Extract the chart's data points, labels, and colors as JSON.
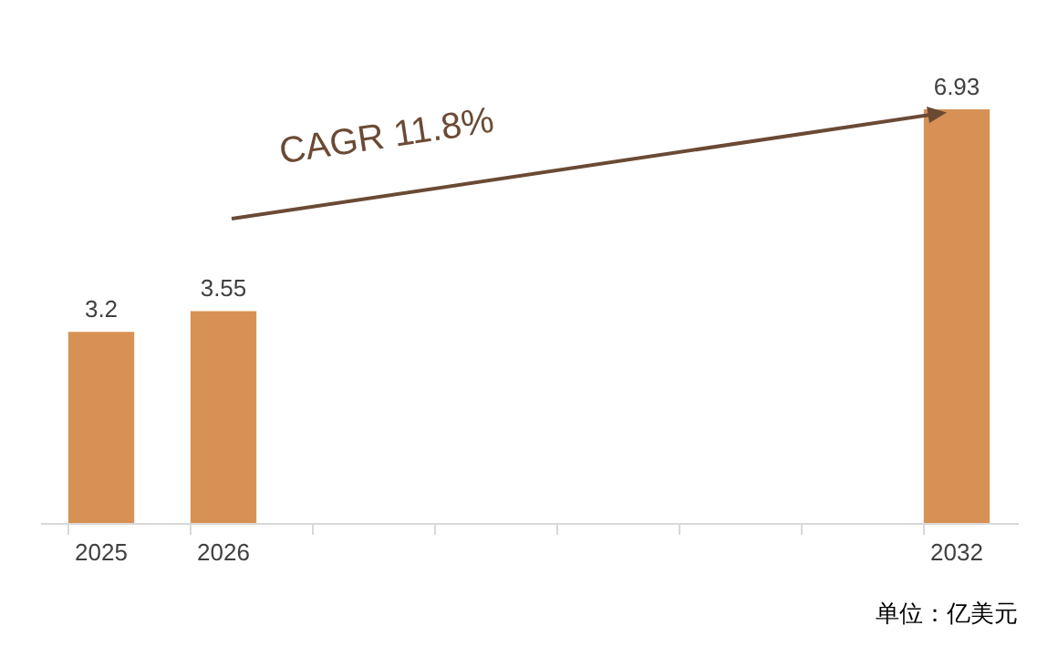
{
  "chart_data": {
    "type": "bar",
    "categories": [
      "2025",
      "2026",
      null,
      null,
      null,
      null,
      null,
      "2032"
    ],
    "values": [
      3.2,
      3.55,
      null,
      null,
      null,
      null,
      null,
      6.93
    ],
    "color": "#d79155",
    "data_labels": true,
    "annotations": [
      "CAGR  11.8%",
      "单位：亿美元"
    ]
  }
}
